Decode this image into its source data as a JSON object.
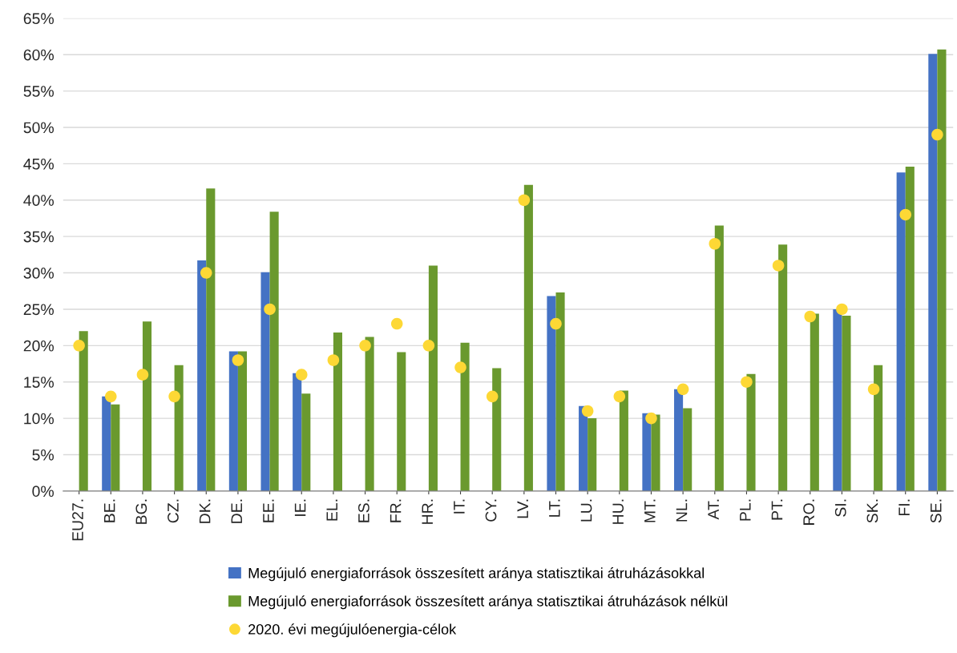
{
  "chart_data": {
    "type": "bar",
    "categories": [
      "EU27.",
      "BE.",
      "BG.",
      "CZ.",
      "DK.",
      "DE.",
      "EE.",
      "IE.",
      "EL.",
      "ES.",
      "FR.",
      "HR.",
      "IT.",
      "CY.",
      "LV.",
      "LT.",
      "LU.",
      "HU.",
      "MT.",
      "NL.",
      "AT.",
      "PL.",
      "PT.",
      "RO.",
      "SI.",
      "SK.",
      "FI.",
      "SE."
    ],
    "series": [
      {
        "name": "Megújuló energiaforrások összesített aránya statisztikai átruházásokkal",
        "color": "#4472c4",
        "values": [
          null,
          13.0,
          null,
          null,
          31.7,
          19.2,
          30.1,
          16.2,
          null,
          null,
          null,
          null,
          null,
          null,
          null,
          26.8,
          11.7,
          null,
          10.7,
          14.0,
          null,
          null,
          null,
          null,
          25.0,
          null,
          43.8,
          60.1
        ]
      },
      {
        "name": "Megújuló energiaforrások összesített aránya statisztikai átruházások nélkül",
        "color": "#6a992e",
        "values": [
          22.0,
          11.9,
          23.3,
          17.3,
          41.6,
          19.2,
          38.4,
          13.4,
          21.8,
          21.2,
          19.1,
          31.0,
          20.4,
          16.9,
          42.1,
          27.3,
          10.0,
          13.8,
          10.5,
          11.4,
          36.5,
          16.1,
          33.9,
          24.4,
          24.1,
          17.3,
          44.6,
          60.7
        ]
      },
      {
        "name": "2020. évi megújulóenergia-célok",
        "type": "scatter",
        "color": "#fdd835",
        "values": [
          20,
          13,
          16,
          13,
          30,
          18,
          25,
          16,
          18,
          20,
          23,
          20,
          17,
          13,
          40,
          23,
          11,
          13,
          10,
          14,
          34,
          15,
          31,
          24,
          25,
          14,
          38,
          49
        ]
      }
    ],
    "ylim": [
      0,
      65
    ],
    "yticks": [
      {
        "value": 0,
        "label": "0%"
      },
      {
        "value": 5,
        "label": "5%"
      },
      {
        "value": 10,
        "label": "10%"
      },
      {
        "value": 15,
        "label": "15%"
      },
      {
        "value": 20,
        "label": "20%"
      },
      {
        "value": 25,
        "label": "25%"
      },
      {
        "value": 30,
        "label": "30%"
      },
      {
        "value": 35,
        "label": "35%"
      },
      {
        "value": 40,
        "label": "40%"
      },
      {
        "value": 45,
        "label": "45%"
      },
      {
        "value": 50,
        "label": "50%"
      },
      {
        "value": 55,
        "label": "55%"
      },
      {
        "value": 60,
        "label": "60%"
      },
      {
        "value": 65,
        "label": "65%"
      }
    ],
    "grid": "y",
    "legend": "bottom",
    "marker": "circle"
  }
}
